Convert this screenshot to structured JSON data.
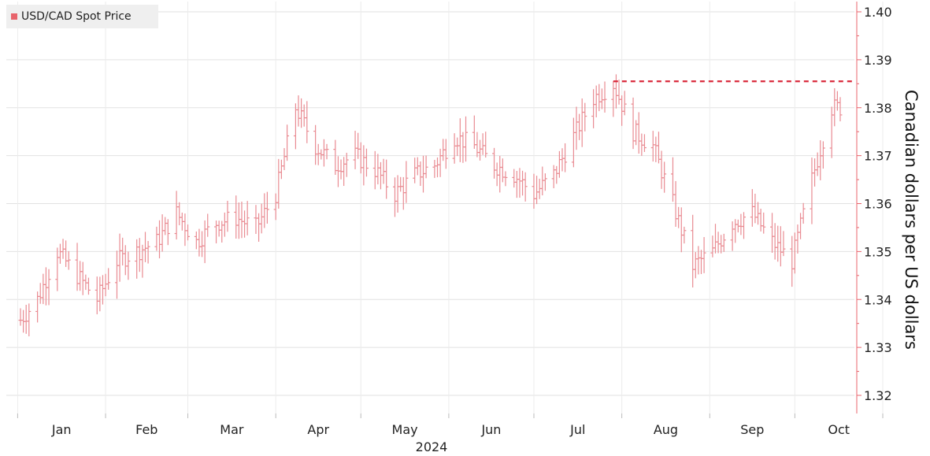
{
  "chart_data": {
    "type": "ohlc-bar",
    "title": "",
    "legend": [
      {
        "name": "USD/CAD Spot Price",
        "color": "#e8646c"
      }
    ],
    "ylabel": "Canadian dollars per US dollars",
    "year_label": "2024",
    "y_ticks": [
      "1.32",
      "1.33",
      "1.34",
      "1.35",
      "1.36",
      "1.37",
      "1.38",
      "1.39",
      "1.40"
    ],
    "ylim": [
      1.318,
      1.402
    ],
    "x_ticks": [
      "Jan",
      "Feb",
      "Mar",
      "Apr",
      "May",
      "Jun",
      "Jul",
      "Aug",
      "Sep",
      "Oct"
    ],
    "grid": true,
    "reference_line": {
      "value": 1.3855,
      "style": "dashed",
      "from": "Aug",
      "to": "Oct"
    },
    "series": [
      {
        "name": "USD/CAD Spot Price",
        "x": [
          "2024-01-01",
          "2024-01-08",
          "2024-01-15",
          "2024-01-22",
          "2024-01-29",
          "2024-02-05",
          "2024-02-12",
          "2024-02-19",
          "2024-02-26",
          "2024-03-04",
          "2024-03-11",
          "2024-03-18",
          "2024-03-25",
          "2024-04-01",
          "2024-04-08",
          "2024-04-15",
          "2024-04-22",
          "2024-04-29",
          "2024-05-06",
          "2024-05-13",
          "2024-05-20",
          "2024-05-27",
          "2024-06-03",
          "2024-06-10",
          "2024-06-17",
          "2024-06-24",
          "2024-07-01",
          "2024-07-08",
          "2024-07-15",
          "2024-07-22",
          "2024-07-29",
          "2024-08-05",
          "2024-08-12",
          "2024-08-19",
          "2024-08-26",
          "2024-09-02",
          "2024-09-09",
          "2024-09-16",
          "2024-09-23",
          "2024-09-30",
          "2024-10-07",
          "2024-10-14"
        ],
        "values": [
          1.335,
          1.34,
          1.35,
          1.345,
          1.34,
          1.348,
          1.35,
          1.352,
          1.358,
          1.352,
          1.356,
          1.357,
          1.355,
          1.362,
          1.38,
          1.372,
          1.368,
          1.37,
          1.367,
          1.362,
          1.366,
          1.368,
          1.374,
          1.372,
          1.368,
          1.366,
          1.362,
          1.366,
          1.374,
          1.382,
          1.385,
          1.375,
          1.372,
          1.36,
          1.347,
          1.35,
          1.356,
          1.358,
          1.352,
          1.348,
          1.365,
          1.38
        ]
      }
    ]
  }
}
